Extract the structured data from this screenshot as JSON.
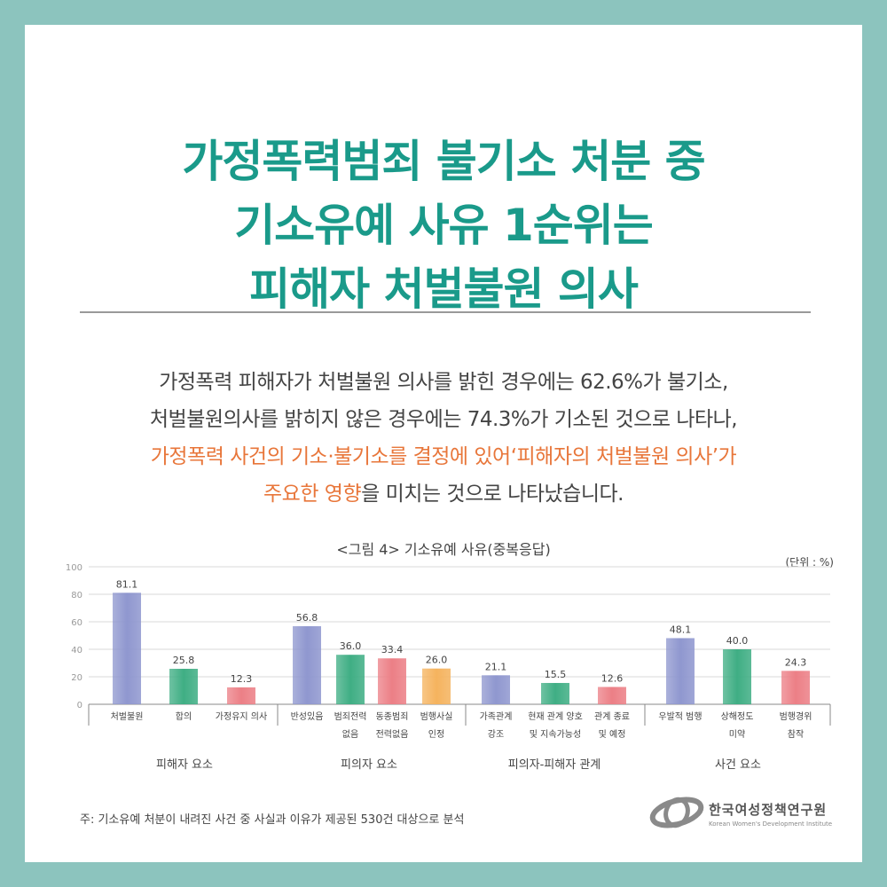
{
  "title_lines": [
    "가정폭력범죄 불기소 처분 중",
    "기소유예 사유 1순위는",
    "피해자 처벌불원 의사"
  ],
  "desc": {
    "line1": "가정폭력 피해자가 처벌불원 의사를 밝힌 경우에는 62.6%가 불기소,",
    "line2": "처벌불원의사를 밝히지 않은 경우에는 74.3%가 기소된 것으로 나타나,",
    "line3": "가정폭력 사건의 기소·불기소를 결정에 있어‘피해자의 처벌불원 의사’가",
    "line4_highlight": "주요한 영향",
    "line4_rest": "을 미치는 것으로 나타났습니다."
  },
  "colors": {
    "title": "#1a9a8a",
    "highlight": "#e8763a",
    "background": "#8cc4be"
  },
  "chart_data": {
    "type": "bar",
    "title": "<그림 4> 기소유예 사유(중복응답)",
    "unit": "(단위 : %)",
    "ylim": [
      0,
      100
    ],
    "yticks": [
      0,
      20,
      40,
      60,
      80,
      100
    ],
    "grid": true,
    "categories": [
      [
        "처벌불원"
      ],
      [
        "합의"
      ],
      [
        "가정유지 의사"
      ],
      [
        "반성있음"
      ],
      [
        "범죄전력",
        "없음"
      ],
      [
        "동종범죄",
        "전력없음"
      ],
      [
        "범행사실",
        "인정"
      ],
      [
        "가족관계",
        "강조"
      ],
      [
        "현재 관계 양호",
        "및 지속가능성"
      ],
      [
        "관계 종료",
        "및 예정"
      ],
      [
        "우발적 범행"
      ],
      [
        "상해정도",
        "미약"
      ],
      [
        "범행경위",
        "참작"
      ]
    ],
    "values": [
      81.1,
      25.8,
      12.3,
      56.8,
      36.0,
      33.4,
      26.0,
      21.1,
      15.5,
      12.6,
      48.1,
      40.0,
      24.3
    ],
    "value_labels": [
      "81.1",
      "25.8",
      "12.3",
      "56.8",
      "36.0",
      "33.4",
      "26.0",
      "21.1",
      "15.5",
      "12.6",
      "48.1",
      "40.0",
      "24.3"
    ],
    "bar_colors": [
      "purple",
      "green",
      "red",
      "purple",
      "green",
      "red",
      "orange",
      "purple",
      "green",
      "red",
      "purple",
      "green",
      "red"
    ],
    "palette": {
      "purple": "#8f97cf",
      "green": "#3fae84",
      "red": "#ec7f86",
      "orange": "#f5b35e"
    },
    "groups": [
      {
        "name": "피해자 요소",
        "count": 3
      },
      {
        "name": "피의자 요소",
        "count": 4
      },
      {
        "name": "피의자-피해자 관계",
        "count": 3
      },
      {
        "name": "사건 요소",
        "count": 3
      }
    ]
  },
  "footnote": "주: 기소유예 처분이 내려진 사건 중 사실과 이유가 제공된 530건 대상으로 분석",
  "logo": {
    "name_ko": "한국여성정책연구원",
    "name_en": "Korean Women's Development Institute"
  }
}
